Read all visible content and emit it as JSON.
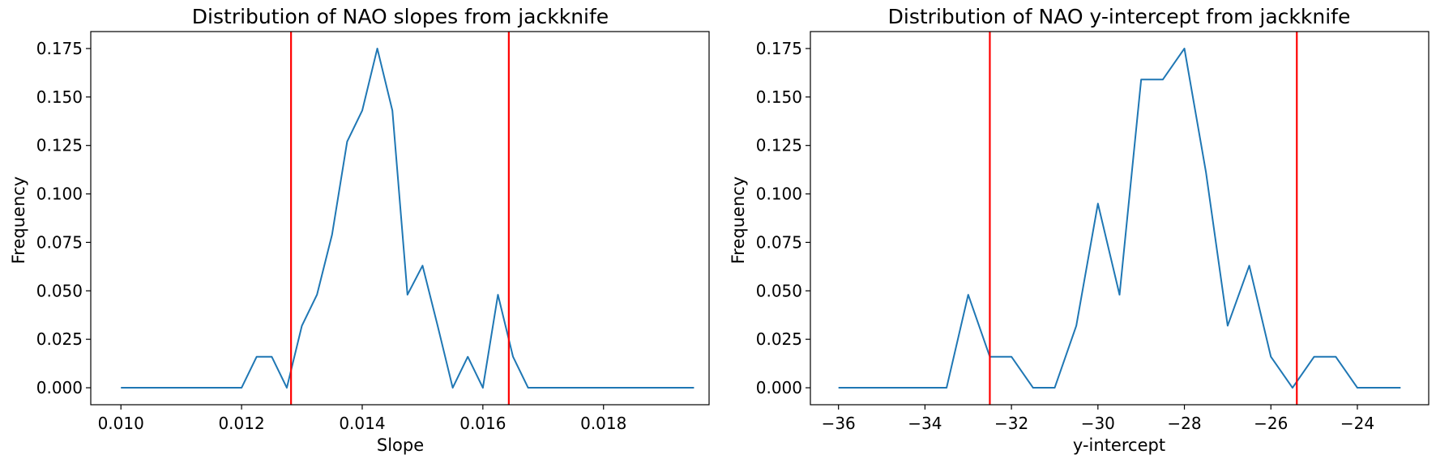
{
  "colors": {
    "series": "#1f77b4",
    "vline": "#ff0000"
  },
  "chart_data": [
    {
      "type": "line",
      "title": "Distribution of NAO slopes from jackknife",
      "xlabel": "Slope",
      "ylabel": "Frequency",
      "xlim": [
        0.0095,
        0.01975
      ],
      "ylim": [
        -0.00875,
        0.18375
      ],
      "xticks": [
        0.01,
        0.012,
        0.014,
        0.016,
        0.018
      ],
      "xtick_labels": [
        "0.010",
        "0.012",
        "0.014",
        "0.016",
        "0.018"
      ],
      "yticks": [
        0,
        0.025,
        0.05,
        0.075,
        0.1,
        0.125,
        0.15,
        0.175
      ],
      "ytick_labels": [
        "0.000",
        "0.025",
        "0.050",
        "0.075",
        "0.100",
        "0.125",
        "0.150",
        "0.175"
      ],
      "grid": false,
      "series": [
        {
          "x": [
            0.01,
            0.01025,
            0.0105,
            0.01075,
            0.011,
            0.01125,
            0.0115,
            0.01175,
            0.012,
            0.01225,
            0.0125,
            0.01275,
            0.013,
            0.01325,
            0.0135,
            0.01375,
            0.014,
            0.01425,
            0.0145,
            0.01475,
            0.015,
            0.01525,
            0.0155,
            0.01575,
            0.016,
            0.01625,
            0.0165,
            0.01675,
            0.017,
            0.01725,
            0.0175,
            0.01775,
            0.018,
            0.01825,
            0.0185,
            0.01875,
            0.019,
            0.01925,
            0.0195
          ],
          "y": [
            0,
            0,
            0,
            0,
            0,
            0,
            0,
            0,
            0,
            0.016,
            0.016,
            0,
            0.032,
            0.048,
            0.079,
            0.127,
            0.143,
            0.175,
            0.143,
            0.048,
            0.063,
            0.032,
            0,
            0.016,
            0,
            0.048,
            0.016,
            0,
            0,
            0,
            0,
            0,
            0,
            0,
            0,
            0,
            0,
            0,
            0
          ]
        }
      ],
      "vlines": [
        0.01282,
        0.01643
      ]
    },
    {
      "type": "line",
      "title": "Distribution of NAO y-intercept from jackknife",
      "xlabel": "y-intercept",
      "ylabel": "Frequency",
      "xlim": [
        -36.65,
        -22.35
      ],
      "ylim": [
        -0.00875,
        0.18375
      ],
      "xticks": [
        -36,
        -34,
        -32,
        -30,
        -28,
        -26,
        -24
      ],
      "xtick_labels": [
        "−36",
        "−34",
        "−32",
        "−30",
        "−28",
        "−26",
        "−24"
      ],
      "yticks": [
        0,
        0.025,
        0.05,
        0.075,
        0.1,
        0.125,
        0.15,
        0.175
      ],
      "ytick_labels": [
        "0.000",
        "0.025",
        "0.050",
        "0.075",
        "0.100",
        "0.125",
        "0.150",
        "0.175"
      ],
      "grid": false,
      "series": [
        {
          "x": [
            -36,
            -35.5,
            -35,
            -34.5,
            -34,
            -33.5,
            -33,
            -32.5,
            -32,
            -31.5,
            -31,
            -30.5,
            -30,
            -29.5,
            -29,
            -28.5,
            -28,
            -27.5,
            -27,
            -26.5,
            -26,
            -25.5,
            -25,
            -24.5,
            -24,
            -23.5,
            -23
          ],
          "y": [
            0,
            0,
            0,
            0,
            0,
            0,
            0.048,
            0.016,
            0.016,
            0,
            0,
            0.032,
            0.095,
            0.048,
            0.159,
            0.159,
            0.175,
            0.111,
            0.032,
            0.063,
            0.016,
            0,
            0.016,
            0.016,
            0,
            0,
            0
          ]
        }
      ],
      "vlines": [
        -32.5,
        -25.4
      ]
    }
  ]
}
